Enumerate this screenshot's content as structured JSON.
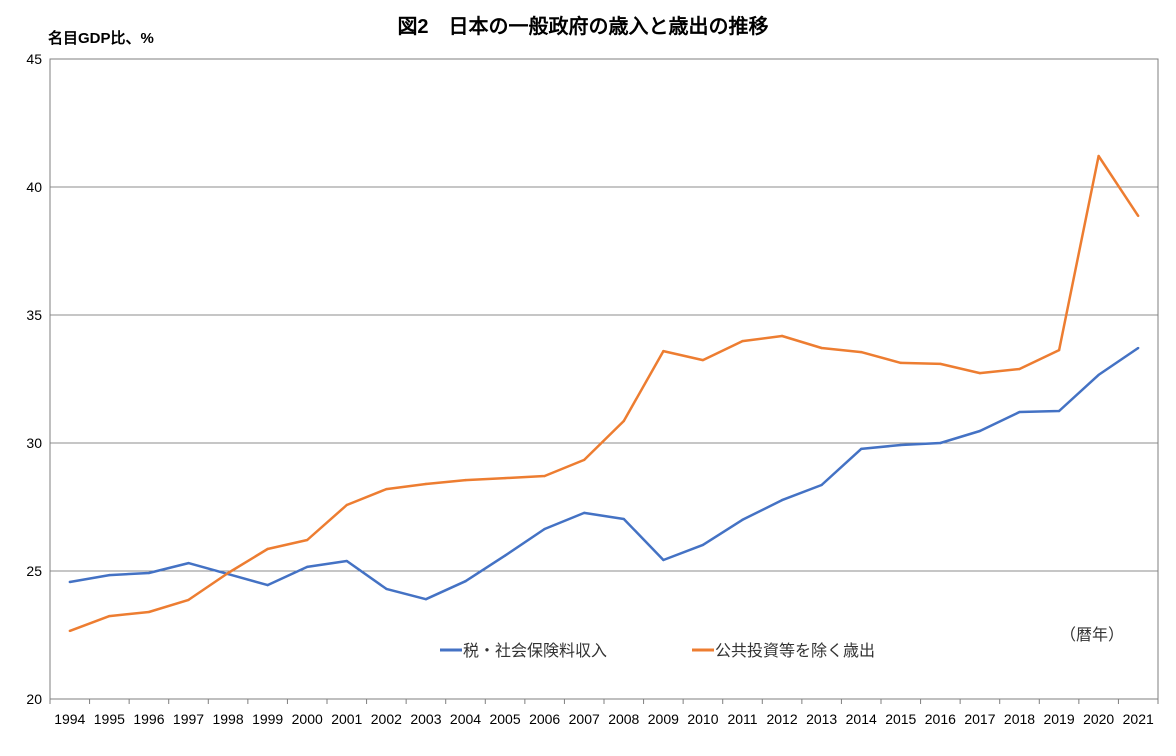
{
  "chart_data": {
    "type": "line",
    "title": "図2　日本の一般政府の歳入と歳出の推移",
    "ylabel": "名目GDP比、%",
    "xlabel": "（暦年）",
    "ylim": [
      20,
      45
    ],
    "yticks": [
      20,
      25,
      30,
      35,
      40,
      45
    ],
    "grid": true,
    "legend_position": "bottom-center",
    "x": [
      "1994",
      "1995",
      "1996",
      "1997",
      "1998",
      "1999",
      "2000",
      "2001",
      "2002",
      "2003",
      "2004",
      "2005",
      "2006",
      "2007",
      "2008",
      "2009",
      "2010",
      "2011",
      "2012",
      "2013",
      "2014",
      "2015",
      "2016",
      "2017",
      "2018",
      "2019",
      "2020",
      "2021"
    ],
    "series": [
      {
        "name": "税・社会保険料収入",
        "color": "#4472C4",
        "values": [
          24.57,
          24.84,
          24.92,
          25.31,
          24.88,
          24.45,
          25.16,
          25.39,
          24.3,
          23.9,
          24.6,
          25.6,
          26.64,
          27.27,
          27.03,
          25.43,
          26.02,
          27.0,
          27.77,
          28.36,
          29.77,
          29.92,
          30.0,
          30.47,
          31.21,
          31.25,
          32.66,
          33.71
        ]
      },
      {
        "name": "公共投資等を除く歳出",
        "color": "#ED7D31",
        "values": [
          22.66,
          23.24,
          23.4,
          23.87,
          24.92,
          25.86,
          26.21,
          27.58,
          28.2,
          28.4,
          28.55,
          28.63,
          28.71,
          29.34,
          30.86,
          33.59,
          33.24,
          33.98,
          34.18,
          33.71,
          33.55,
          33.13,
          33.09,
          32.73,
          32.89,
          33.63,
          41.21,
          38.87
        ]
      }
    ]
  }
}
